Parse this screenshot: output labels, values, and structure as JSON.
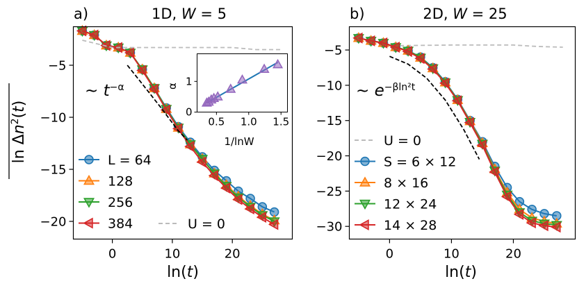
{
  "chart_data": [
    {
      "type": "line",
      "panel_label": "a)",
      "title": "1D, W = 5",
      "title_main": "1D, ",
      "title_var": "W",
      "title_eq": " = 5",
      "xlabel": "ln(t)",
      "ylabel": "ln Δn²(t) (overlined)",
      "xlim": [
        -6.5,
        30
      ],
      "ylim": [
        -21.7,
        -1.3
      ],
      "xticks": [
        0,
        10,
        20
      ],
      "yticks": [
        -5,
        -10,
        -15,
        -20
      ],
      "annotation": "~ t^(-α)",
      "annotation_prefix": "~ ",
      "annotation_base": "t",
      "annotation_exp": "−α",
      "legend_position": "lower-left",
      "series": [
        {
          "name": "L = 64",
          "color": "#1f77b4",
          "marker": "circle",
          "x": [
            -5,
            -3,
            -1,
            1,
            3,
            5,
            7,
            9,
            11,
            13,
            15,
            17,
            19,
            21,
            23,
            25,
            27
          ],
          "y": [
            -1.7,
            -2.1,
            -3.1,
            -3.3,
            -3.8,
            -5.4,
            -7.2,
            -9.1,
            -10.9,
            -12.4,
            -13.8,
            -15.1,
            -16.1,
            -17.1,
            -17.8,
            -18.6,
            -19.1
          ]
        },
        {
          "name": "128",
          "color": "#ff7f0e",
          "marker": "triangle-up",
          "x": [
            -5,
            -3,
            -1,
            1,
            3,
            5,
            7,
            9,
            11,
            13,
            15,
            17,
            19,
            21,
            23,
            25,
            27
          ],
          "y": [
            -1.7,
            -2.1,
            -3.1,
            -3.3,
            -3.8,
            -5.4,
            -7.2,
            -9.2,
            -11.0,
            -12.6,
            -14.0,
            -15.4,
            -16.5,
            -17.6,
            -18.5,
            -19.3,
            -19.9
          ]
        },
        {
          "name": "256",
          "color": "#2ca02c",
          "marker": "triangle-down",
          "x": [
            -5,
            -3,
            -1,
            1,
            3,
            5,
            7,
            9,
            11,
            13,
            15,
            17,
            19,
            21,
            23,
            25,
            27
          ],
          "y": [
            -1.7,
            -2.1,
            -3.1,
            -3.3,
            -3.8,
            -5.4,
            -7.2,
            -9.2,
            -11.0,
            -12.6,
            -14.0,
            -15.4,
            -16.6,
            -17.7,
            -18.6,
            -19.4,
            -20.0
          ]
        },
        {
          "name": "384",
          "color": "#d62728",
          "marker": "triangle-left",
          "x": [
            -5,
            -3,
            -1,
            1,
            3,
            5,
            7,
            9,
            11,
            13,
            15,
            17,
            19,
            21,
            23,
            25,
            27
          ],
          "y": [
            -1.7,
            -2.1,
            -3.1,
            -3.3,
            -3.8,
            -5.5,
            -7.3,
            -9.3,
            -11.1,
            -12.8,
            -14.3,
            -15.6,
            -16.8,
            -17.9,
            -18.8,
            -19.6,
            -20.3
          ]
        },
        {
          "name": "U = 0",
          "color": "#bbbbbb",
          "dashed": true,
          "x": [
            -5,
            0,
            10,
            20,
            24,
            28
          ],
          "y": [
            -2.6,
            -3.3,
            -3.3,
            -3.3,
            -3.5,
            -3.5
          ]
        },
        {
          "name": "power-law fit",
          "color": "#000000",
          "dashed": true,
          "legend": false,
          "x": [
            2.5,
            5,
            8,
            11,
            12.5
          ],
          "y": [
            -5.0,
            -6.8,
            -9.0,
            -11.3,
            -12.2
          ]
        }
      ],
      "inset": {
        "xlabel": "1/lnW",
        "ylabel": "α",
        "xlim": [
          0.2,
          1.6
        ],
        "ylim": [
          0,
          1.9
        ],
        "xticks": [
          0.5,
          1.0,
          1.5
        ],
        "xticklabels": [
          "0.5",
          "1.0",
          "1.5"
        ],
        "yticks": [
          0,
          1
        ],
        "fit_line": {
          "x": [
            0.35,
            1.45
          ],
          "y": [
            0.3,
            1.62
          ]
        },
        "points": {
          "x": [
            0.35,
            0.38,
            0.42,
            0.46,
            0.52,
            0.72,
            0.9,
            1.24,
            1.45
          ],
          "y": [
            0.3,
            0.33,
            0.4,
            0.45,
            0.5,
            0.75,
            1.05,
            1.4,
            1.55
          ]
        },
        "point_color": "#9467bd"
      }
    },
    {
      "type": "line",
      "panel_label": "b)",
      "title": "2D, W = 25",
      "title_main": "2D, ",
      "title_var": "W",
      "title_eq": " = 25",
      "xlabel": "ln(t)",
      "xlim": [
        -6.5,
        30
      ],
      "ylim": [
        -31.8,
        -1.7
      ],
      "xticks": [
        0,
        10,
        20
      ],
      "yticks": [
        -5,
        -10,
        -15,
        -20,
        -25,
        -30
      ],
      "annotation": "~ e^(-β ln² t)",
      "annotation_prefix": "~ ",
      "annotation_base": "e",
      "annotation_exp": "−βln²t",
      "legend_position": "lower-left",
      "series": [
        {
          "name": "U = 0",
          "color": "#bbbbbb",
          "dashed": true,
          "x": [
            -5,
            0,
            10,
            20,
            24,
            28
          ],
          "y": [
            -3.6,
            -4.4,
            -4.3,
            -4.3,
            -4.5,
            -4.6
          ]
        },
        {
          "name": "S = 6 × 12",
          "color": "#1f77b4",
          "marker": "circle",
          "x": [
            -5,
            -3,
            -1,
            1,
            3,
            5,
            7,
            9,
            11,
            13,
            15,
            17,
            19,
            21,
            23,
            25,
            27
          ],
          "y": [
            -3.3,
            -3.7,
            -4.0,
            -4.6,
            -5.1,
            -6.0,
            -7.5,
            -9.5,
            -12.0,
            -15.0,
            -18.0,
            -21.5,
            -24.5,
            -26.5,
            -27.6,
            -28.2,
            -28.5
          ]
        },
        {
          "name": "8 × 16",
          "color": "#ff7f0e",
          "marker": "triangle-up",
          "x": [
            -5,
            -3,
            -1,
            1,
            3,
            5,
            7,
            9,
            11,
            13,
            15,
            17,
            19,
            21,
            23,
            25,
            27
          ],
          "y": [
            -3.3,
            -3.7,
            -4.0,
            -4.6,
            -5.1,
            -6.1,
            -7.6,
            -9.6,
            -12.1,
            -15.1,
            -18.2,
            -21.9,
            -25.2,
            -27.6,
            -28.8,
            -29.3,
            -29.6
          ]
        },
        {
          "name": "12 × 24",
          "color": "#2ca02c",
          "marker": "triangle-down",
          "x": [
            -5,
            -3,
            -1,
            1,
            3,
            5,
            7,
            9,
            11,
            13,
            15,
            17,
            19,
            21,
            23,
            25,
            27
          ],
          "y": [
            -3.3,
            -3.7,
            -4.0,
            -4.6,
            -5.1,
            -6.1,
            -7.6,
            -9.6,
            -12.1,
            -15.2,
            -18.3,
            -22.1,
            -25.5,
            -28.0,
            -29.2,
            -29.6,
            -29.8
          ]
        },
        {
          "name": "14 × 28",
          "color": "#d62728",
          "marker": "triangle-left",
          "x": [
            -5,
            -3,
            -1,
            1,
            3,
            5,
            7,
            9,
            11,
            13,
            15,
            17,
            19,
            21,
            23,
            25,
            27
          ],
          "y": [
            -3.3,
            -3.7,
            -4.0,
            -4.6,
            -5.2,
            -6.2,
            -7.7,
            -9.7,
            -12.2,
            -15.3,
            -18.5,
            -22.3,
            -25.8,
            -28.3,
            -29.5,
            -29.9,
            -30.1
          ]
        },
        {
          "name": "Gaussian fit",
          "color": "#000000",
          "dashed": true,
          "legend": false,
          "x": [
            0,
            3,
            6,
            9,
            12,
            14.5
          ],
          "y": [
            -5.9,
            -7.0,
            -9.0,
            -12.1,
            -16.3,
            -20.5
          ]
        }
      ]
    }
  ]
}
